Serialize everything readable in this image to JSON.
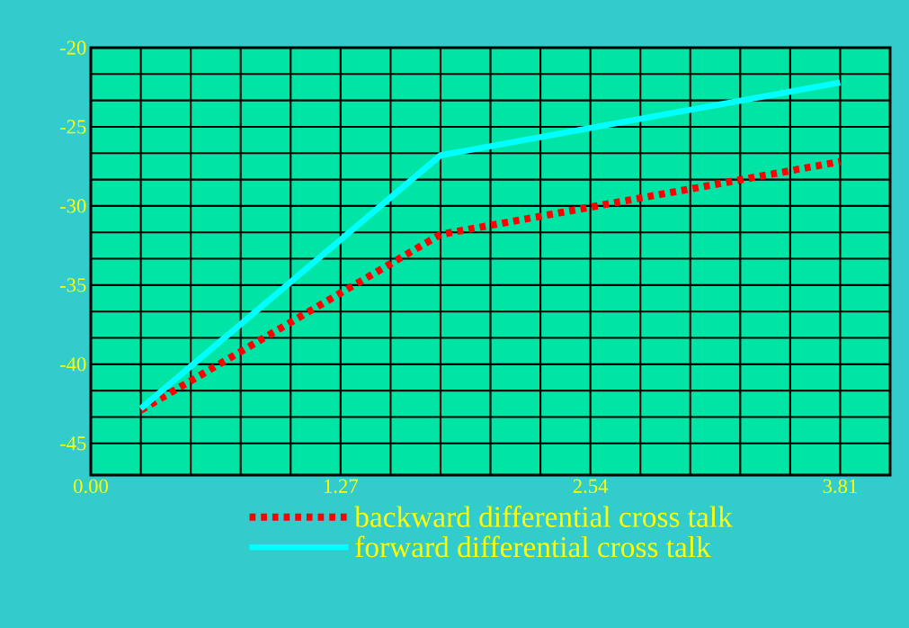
{
  "chart_data": {
    "type": "line",
    "xlim": [
      0,
      4.064
    ],
    "ylim": [
      -47,
      -20
    ],
    "xticks": [
      {
        "value": 0,
        "label": "0.00"
      },
      {
        "value": 1.27,
        "label": "1.27"
      },
      {
        "value": 2.54,
        "label": "2.54"
      },
      {
        "value": 3.81,
        "label": "3.81"
      }
    ],
    "yticks": [
      -45,
      -40,
      -35,
      -30,
      -25,
      -20
    ],
    "grid": true,
    "legend": "bottom",
    "series": [
      {
        "name": "backward differential cross talk",
        "color": "#ff0000",
        "line_style": "dotted",
        "x": [
          0.254,
          1.778,
          3.81
        ],
        "values": [
          -42.9,
          -31.8,
          -27.2
        ]
      },
      {
        "name": "forward differential cross talk",
        "color": "#00ffff",
        "line_style": "solid",
        "x": [
          0.254,
          1.778,
          3.81
        ],
        "values": [
          -42.8,
          -26.8,
          -22.2
        ]
      }
    ]
  }
}
